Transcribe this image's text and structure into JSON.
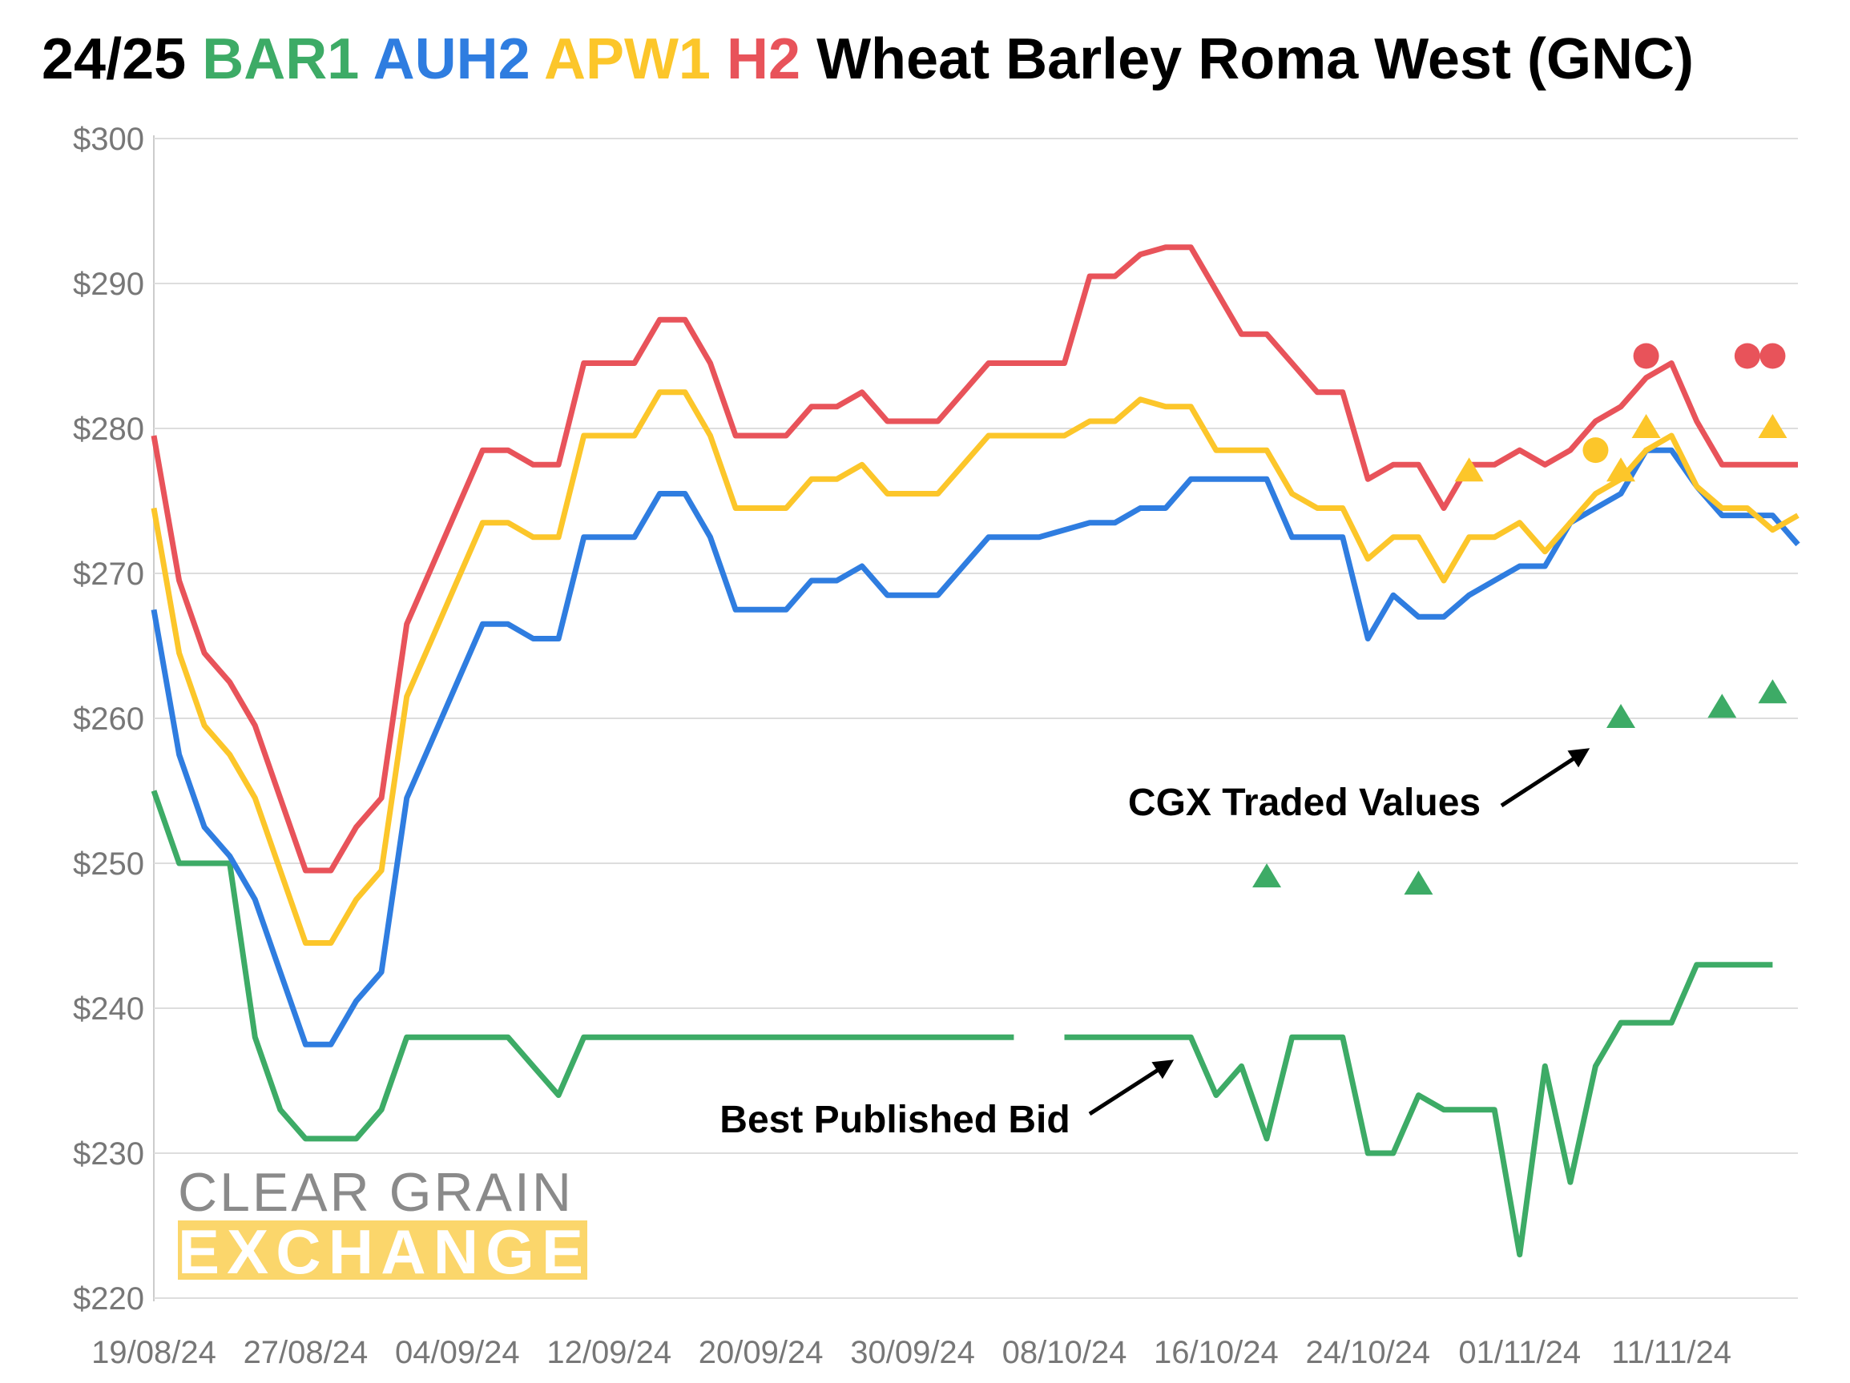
{
  "chart_data": {
    "type": "line",
    "title_prefix": "24/25",
    "title_suffix": "Wheat Barley Roma West (GNC)",
    "categories": [
      "19/08/24",
      null,
      null,
      null,
      null,
      null,
      "27/08/24",
      null,
      null,
      null,
      null,
      null,
      "04/09/24",
      null,
      null,
      null,
      null,
      null,
      "12/09/24",
      null,
      null,
      null,
      null,
      null,
      "20/09/24",
      null,
      null,
      null,
      null,
      null,
      "30/09/24",
      null,
      null,
      null,
      null,
      null,
      "08/10/24",
      null,
      null,
      null,
      null,
      null,
      "16/10/24",
      null,
      null,
      null,
      null,
      null,
      "24/10/24",
      null,
      null,
      null,
      null,
      null,
      "01/11/24",
      null,
      null,
      null,
      null,
      null,
      "11/11/24",
      null,
      null,
      null,
      null,
      null
    ],
    "ylim": [
      220,
      300
    ],
    "yticks": [
      {
        "value": 220,
        "label": "$220"
      },
      {
        "value": 230,
        "label": "$230"
      },
      {
        "value": 240,
        "label": "$240"
      },
      {
        "value": 250,
        "label": "$250"
      },
      {
        "value": 260,
        "label": "$260"
      },
      {
        "value": 270,
        "label": "$270"
      },
      {
        "value": 280,
        "label": "$280"
      },
      {
        "value": 290,
        "label": "$290"
      },
      {
        "value": 300,
        "label": "$300"
      }
    ],
    "grid": true,
    "series": [
      {
        "name": "BAR1",
        "color": "#3dab66",
        "values": [
          255,
          250,
          250,
          250,
          238,
          233,
          231,
          231,
          231,
          233,
          238,
          238,
          238,
          238,
          238,
          236,
          234,
          238,
          238,
          238,
          238,
          238,
          238,
          238,
          238,
          238,
          238,
          238,
          238,
          238,
          238,
          238,
          238,
          238,
          238,
          null,
          238,
          238,
          238,
          238,
          238,
          238,
          234,
          236,
          231,
          238,
          238,
          238,
          230,
          230,
          234,
          233,
          233,
          233,
          223,
          236,
          228,
          236,
          239,
          239,
          239,
          243,
          243,
          243,
          243,
          null
        ],
        "traded_triangles": [
          null,
          null,
          null,
          null,
          null,
          null,
          null,
          null,
          null,
          null,
          null,
          null,
          null,
          null,
          null,
          null,
          null,
          null,
          null,
          null,
          null,
          null,
          null,
          null,
          null,
          null,
          null,
          null,
          null,
          null,
          null,
          null,
          null,
          null,
          null,
          null,
          null,
          null,
          null,
          null,
          null,
          null,
          null,
          null,
          249,
          null,
          null,
          null,
          null,
          null,
          248.5,
          null,
          null,
          null,
          null,
          null,
          null,
          null,
          260,
          null,
          null,
          null,
          260.7,
          null,
          261.7,
          null
        ]
      },
      {
        "name": "AUH2",
        "color": "#2f7de0",
        "values": [
          267.5,
          257.5,
          252.5,
          250.5,
          247.5,
          242.5,
          237.5,
          237.5,
          240.5,
          242.5,
          254.5,
          258.5,
          262.5,
          266.5,
          266.5,
          265.5,
          265.5,
          272.5,
          272.5,
          272.5,
          275.5,
          275.5,
          272.5,
          267.5,
          267.5,
          267.5,
          269.5,
          269.5,
          270.5,
          268.5,
          268.5,
          268.5,
          270.5,
          272.5,
          272.5,
          272.5,
          273,
          273.5,
          273.5,
          274.5,
          274.5,
          276.5,
          276.5,
          276.5,
          276.5,
          272.5,
          272.5,
          272.5,
          265.5,
          268.5,
          267,
          267,
          268.5,
          269.5,
          270.5,
          270.5,
          273.5,
          274.5,
          275.5,
          278.5,
          278.5,
          276,
          274,
          274,
          274,
          272
        ]
      },
      {
        "name": "APW1",
        "color": "#fcc62a",
        "values": [
          274.5,
          264.5,
          259.5,
          257.5,
          254.5,
          249.5,
          244.5,
          244.5,
          247.5,
          249.5,
          261.5,
          265.5,
          269.5,
          273.5,
          273.5,
          272.5,
          272.5,
          279.5,
          279.5,
          279.5,
          282.5,
          282.5,
          279.5,
          274.5,
          274.5,
          274.5,
          276.5,
          276.5,
          277.5,
          275.5,
          275.5,
          275.5,
          277.5,
          279.5,
          279.5,
          279.5,
          279.5,
          280.5,
          280.5,
          282,
          281.5,
          281.5,
          278.5,
          278.5,
          278.5,
          275.5,
          274.5,
          274.5,
          271,
          272.5,
          272.5,
          269.5,
          272.5,
          272.5,
          273.5,
          271.5,
          273.5,
          275.5,
          276.5,
          278.5,
          279.5,
          276,
          274.5,
          274.5,
          273,
          274
        ],
        "traded_triangles": [
          null,
          null,
          null,
          null,
          null,
          null,
          null,
          null,
          null,
          null,
          null,
          null,
          null,
          null,
          null,
          null,
          null,
          null,
          null,
          null,
          null,
          null,
          null,
          null,
          null,
          null,
          null,
          null,
          null,
          null,
          null,
          null,
          null,
          null,
          null,
          null,
          null,
          null,
          null,
          null,
          null,
          null,
          null,
          null,
          null,
          null,
          null,
          null,
          null,
          null,
          null,
          null,
          277,
          null,
          null,
          null,
          null,
          null,
          277,
          280,
          null,
          null,
          null,
          null,
          280,
          null
        ],
        "traded_circles": [
          null,
          null,
          null,
          null,
          null,
          null,
          null,
          null,
          null,
          null,
          null,
          null,
          null,
          null,
          null,
          null,
          null,
          null,
          null,
          null,
          null,
          null,
          null,
          null,
          null,
          null,
          null,
          null,
          null,
          null,
          null,
          null,
          null,
          null,
          null,
          null,
          null,
          null,
          null,
          null,
          null,
          null,
          null,
          null,
          null,
          null,
          null,
          null,
          null,
          null,
          null,
          null,
          null,
          null,
          null,
          null,
          null,
          278.5,
          null,
          null,
          null,
          null,
          null,
          null,
          null,
          null
        ]
      },
      {
        "name": "H2",
        "color": "#e8535a",
        "values": [
          279.5,
          269.5,
          264.5,
          262.5,
          259.5,
          254.5,
          249.5,
          249.5,
          252.5,
          254.5,
          266.5,
          270.5,
          274.5,
          278.5,
          278.5,
          277.5,
          277.5,
          284.5,
          284.5,
          284.5,
          287.5,
          287.5,
          284.5,
          279.5,
          279.5,
          279.5,
          281.5,
          281.5,
          282.5,
          280.5,
          280.5,
          280.5,
          282.5,
          284.5,
          284.5,
          284.5,
          284.5,
          290.5,
          290.5,
          292,
          292.5,
          292.5,
          289.5,
          286.5,
          286.5,
          284.5,
          282.5,
          282.5,
          276.5,
          277.5,
          277.5,
          274.5,
          277.5,
          277.5,
          278.5,
          277.5,
          278.5,
          280.5,
          281.5,
          283.5,
          284.5,
          280.5,
          277.5,
          277.5,
          277.5,
          277.5
        ],
        "traded_circles": [
          null,
          null,
          null,
          null,
          null,
          null,
          null,
          null,
          null,
          null,
          null,
          null,
          null,
          null,
          null,
          null,
          null,
          null,
          null,
          null,
          null,
          null,
          null,
          null,
          null,
          null,
          null,
          null,
          null,
          null,
          null,
          null,
          null,
          null,
          null,
          null,
          null,
          null,
          null,
          null,
          null,
          null,
          null,
          null,
          null,
          null,
          null,
          null,
          null,
          null,
          null,
          null,
          null,
          null,
          null,
          null,
          null,
          null,
          null,
          285,
          null,
          null,
          null,
          285,
          285,
          null
        ]
      }
    ],
    "annotations": [
      "CGX Traded Values",
      "Best Published Bid"
    ],
    "logo": [
      "CLEAR GRAIN",
      "EXCHANGE"
    ]
  }
}
